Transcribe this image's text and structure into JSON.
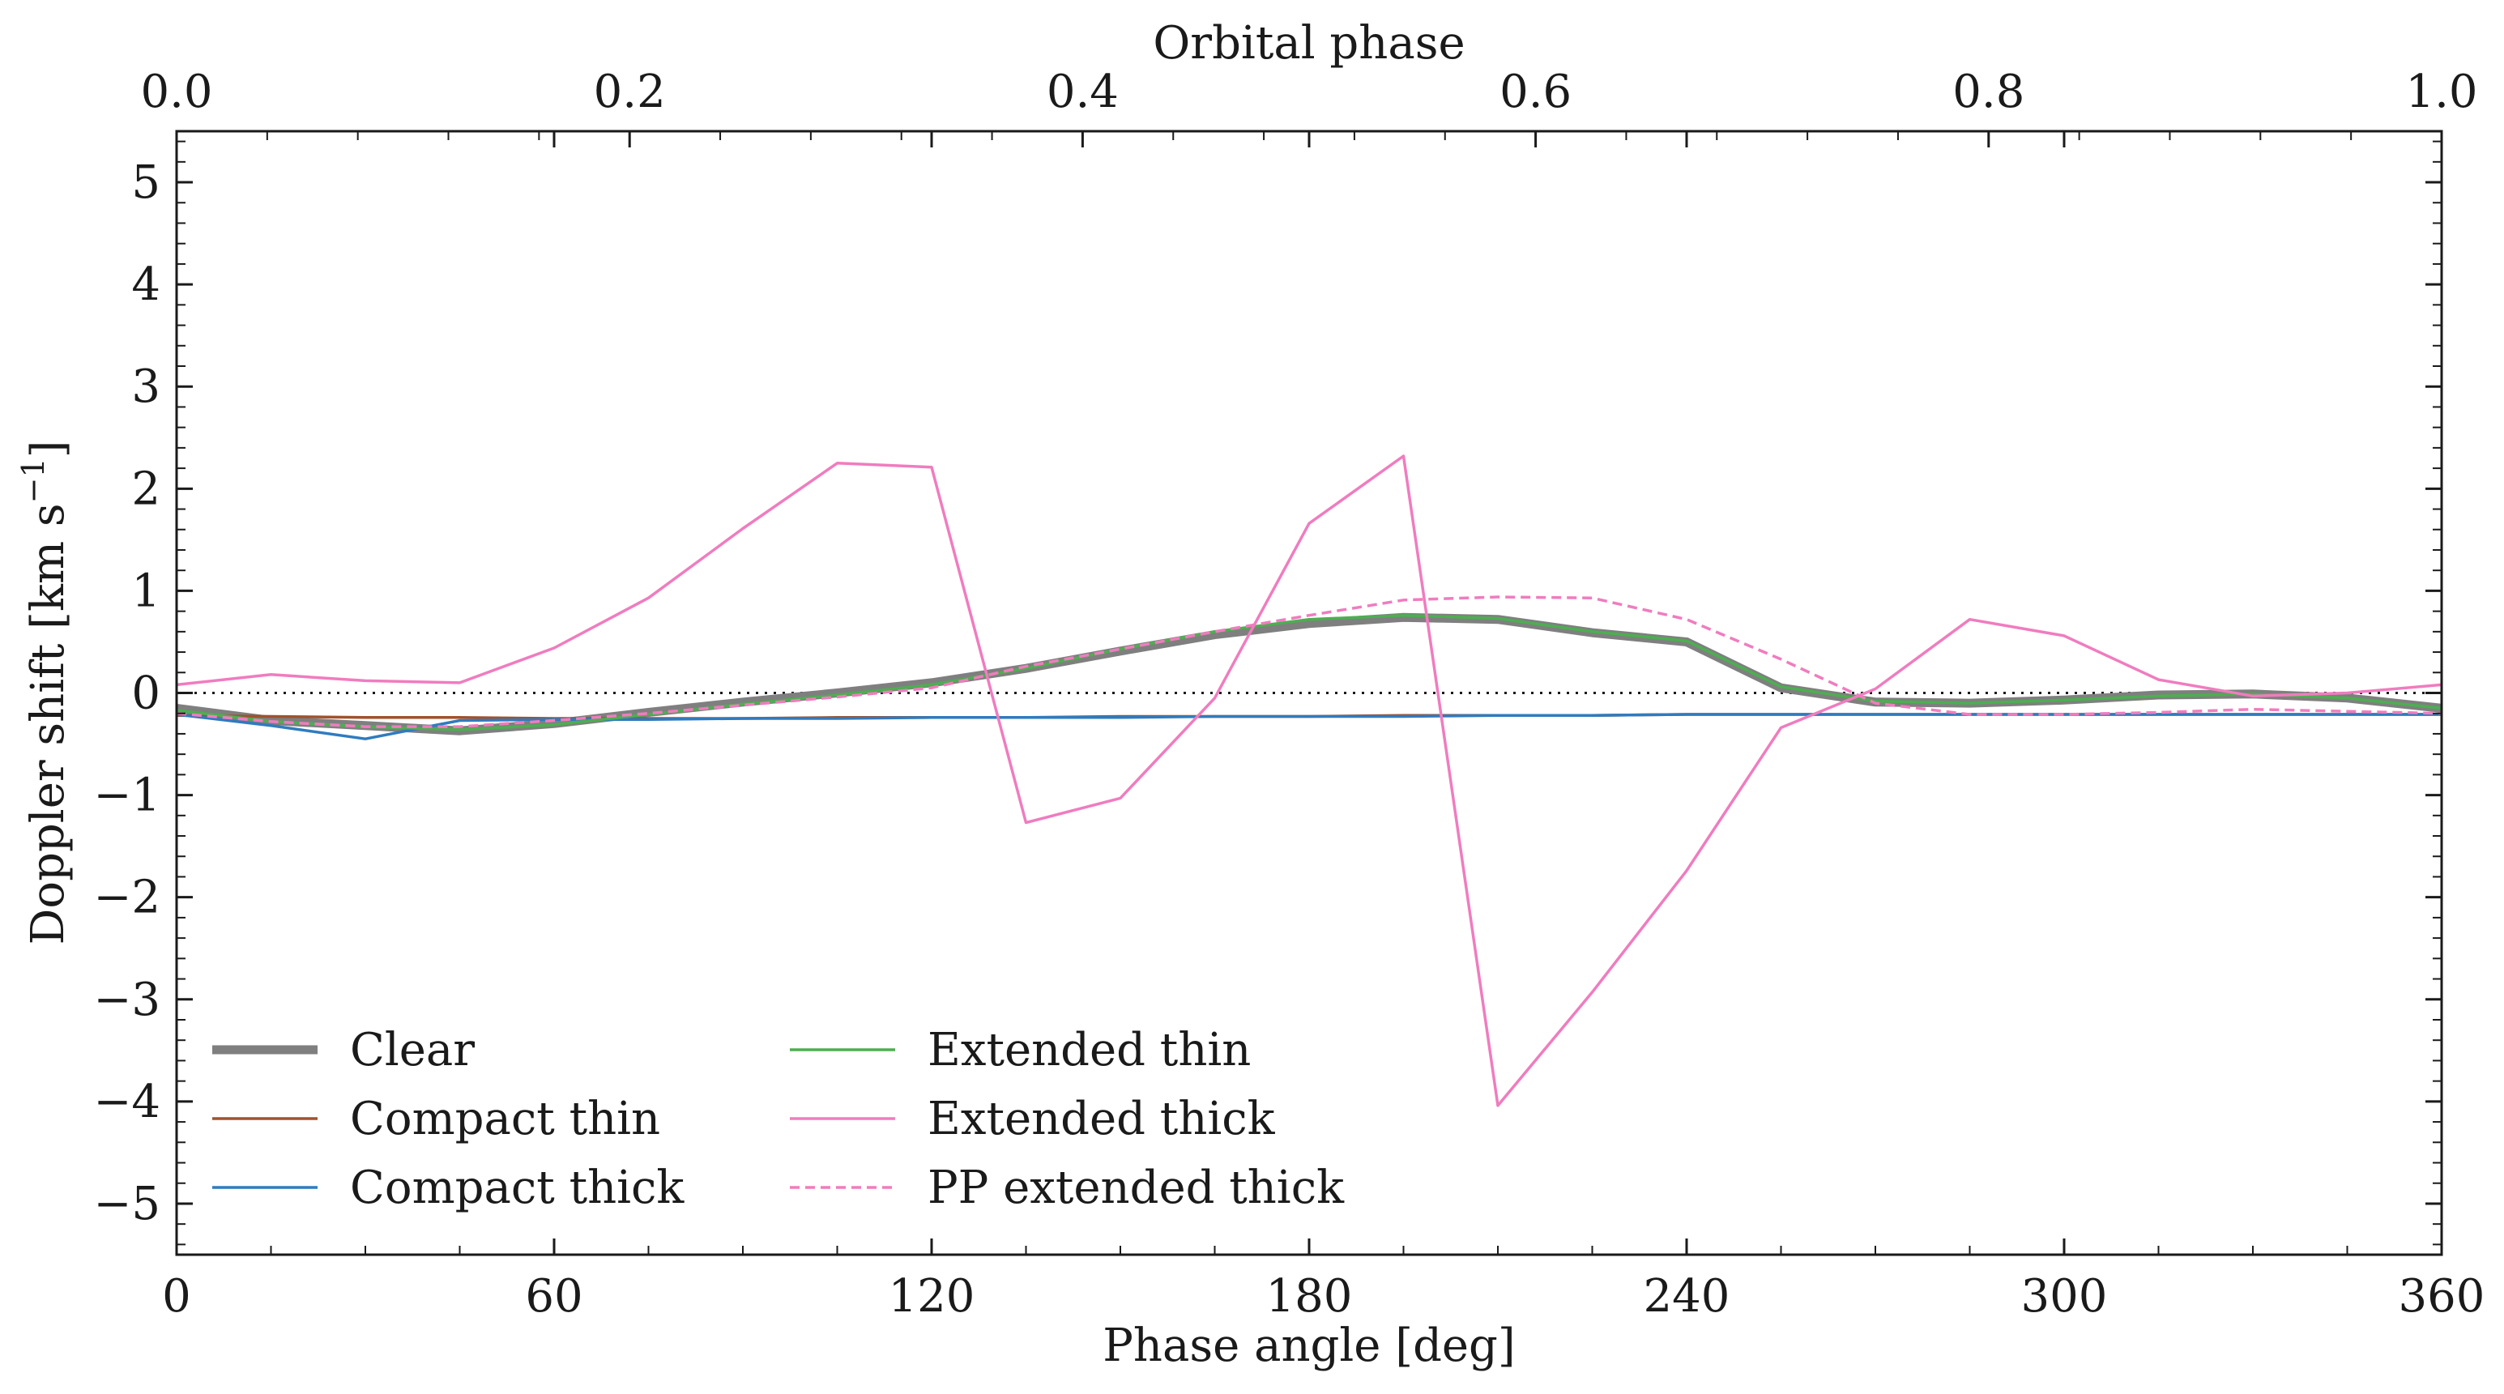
{
  "chart_data": {
    "type": "line",
    "xlabel": "Phase angle [deg]",
    "ylabel": "Doppler shift [km s",
    "ylabel_sup": "−1",
    "ylabel_end": "]",
    "top_xlabel": "Orbital phase",
    "xlim": [
      0,
      360
    ],
    "ylim": [
      -5.5,
      5.5
    ],
    "x_ticks": [
      0,
      60,
      120,
      180,
      240,
      300,
      360
    ],
    "x_tick_labels": [
      "0",
      "60",
      "120",
      "180",
      "240",
      "300",
      "360"
    ],
    "y_ticks": [
      -5,
      -4,
      -3,
      -2,
      -1,
      0,
      1,
      2,
      3,
      4,
      5
    ],
    "y_tick_labels": [
      "−5",
      "−4",
      "−3",
      "−2",
      "−1",
      "0",
      "1",
      "2",
      "3",
      "4",
      "5"
    ],
    "top_ticks": [
      0.0,
      0.2,
      0.4,
      0.6,
      0.8,
      1.0
    ],
    "top_tick_labels": [
      "0.0",
      "0.2",
      "0.4",
      "0.6",
      "0.8",
      "1.0"
    ],
    "reference_line_y": 0,
    "grid": false,
    "legend_position": "lower-left",
    "x": [
      0,
      15,
      30,
      45,
      60,
      75,
      90,
      105,
      120,
      135,
      150,
      165,
      180,
      195,
      210,
      225,
      240,
      255,
      270,
      285,
      300,
      315,
      330,
      345,
      360
    ],
    "series": [
      {
        "name": "Clear",
        "color": "#7f7f7f",
        "style": "thick",
        "values": [
          -0.15,
          -0.27,
          -0.32,
          -0.37,
          -0.3,
          -0.19,
          -0.09,
          0.0,
          0.1,
          0.24,
          0.41,
          0.57,
          0.68,
          0.74,
          0.72,
          0.59,
          0.5,
          0.05,
          -0.09,
          -0.1,
          -0.07,
          -0.02,
          -0.01,
          -0.05,
          -0.15
        ]
      },
      {
        "name": "Compact thin",
        "color": "#a0522d",
        "style": "solid",
        "values": [
          -0.22,
          -0.23,
          -0.24,
          -0.24,
          -0.25,
          -0.25,
          -0.25,
          -0.24,
          -0.24,
          -0.24,
          -0.23,
          -0.23,
          -0.23,
          -0.22,
          -0.22,
          -0.22,
          -0.21,
          -0.21,
          -0.21,
          -0.21,
          -0.21,
          -0.21,
          -0.21,
          -0.21,
          -0.21
        ]
      },
      {
        "name": "Compact thick",
        "color": "#2f7bbf",
        "style": "solid",
        "values": [
          -0.21,
          -0.32,
          -0.45,
          -0.27,
          -0.26,
          -0.26,
          -0.25,
          -0.25,
          -0.24,
          -0.24,
          -0.24,
          -0.23,
          -0.23,
          -0.23,
          -0.22,
          -0.22,
          -0.21,
          -0.21,
          -0.21,
          -0.21,
          -0.21,
          -0.21,
          -0.21,
          -0.21,
          -0.21
        ]
      },
      {
        "name": "Extended thin",
        "color": "#4caf50",
        "style": "solid",
        "values": [
          -0.17,
          -0.28,
          -0.33,
          -0.36,
          -0.31,
          -0.21,
          -0.11,
          -0.02,
          0.08,
          0.24,
          0.43,
          0.6,
          0.72,
          0.76,
          0.73,
          0.6,
          0.51,
          0.06,
          -0.08,
          -0.1,
          -0.07,
          -0.03,
          -0.01,
          -0.05,
          -0.15
        ]
      },
      {
        "name": "Extended thick",
        "color": "#f07cbf",
        "style": "solid",
        "values": [
          0.08,
          0.18,
          0.12,
          0.1,
          0.44,
          0.93,
          1.61,
          2.25,
          2.21,
          -1.27,
          -1.03,
          -0.05,
          1.66,
          2.32,
          -4.04,
          -2.93,
          -1.74,
          -0.34,
          0.04,
          0.72,
          0.56,
          0.13,
          -0.03,
          0.0,
          0.08
        ]
      },
      {
        "name": "PP extended thick",
        "color": "#f07cbf",
        "style": "dashed",
        "values": [
          -0.2,
          -0.28,
          -0.33,
          -0.33,
          -0.27,
          -0.2,
          -0.12,
          -0.04,
          0.05,
          0.26,
          0.43,
          0.6,
          0.76,
          0.91,
          0.94,
          0.93,
          0.72,
          0.33,
          -0.1,
          -0.21,
          -0.21,
          -0.19,
          -0.16,
          -0.18,
          -0.2
        ]
      }
    ]
  }
}
